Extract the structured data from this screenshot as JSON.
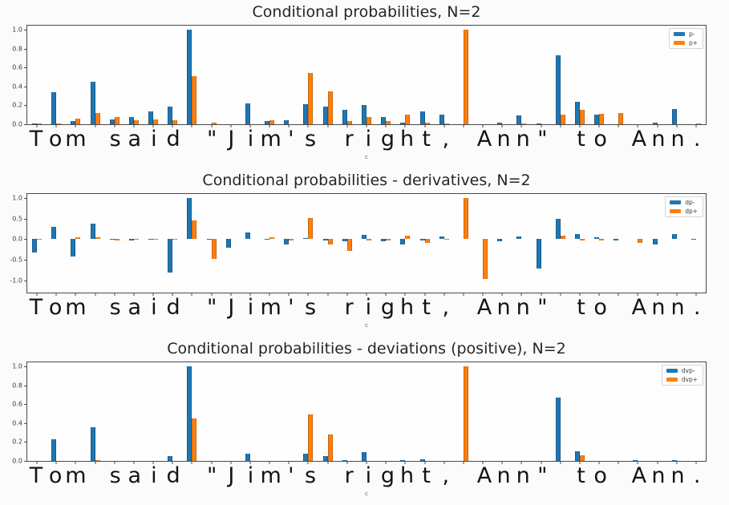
{
  "figure_title": "Conditional probabilities figure",
  "colors": {
    "series_blue": "#1f77b4",
    "series_blue_edge": "#1a5a8a",
    "series_orange": "#ff7f0e",
    "series_orange_edge": "#c9650b",
    "title_text": "#262626",
    "axis": "#4a4a4a"
  },
  "chart_data": [
    {
      "type": "bar",
      "title": "Conditional probabilities, N=2",
      "xlabel": "c",
      "legend_position": "upper right",
      "grid": false,
      "ylim": [
        0,
        1.045
      ],
      "yticks": [
        1.0,
        0.8,
        0.6,
        0.4,
        0.2,
        0.0
      ],
      "categories": [
        "T",
        "o",
        "m",
        " ",
        "s",
        "a",
        "i",
        "d",
        " ",
        "\"",
        "J",
        "i",
        "m",
        "'",
        "s",
        " ",
        "r",
        "i",
        "g",
        "h",
        "t",
        ",",
        " ",
        "A",
        "n",
        "n",
        "\"",
        " ",
        "t",
        "o",
        " ",
        "A",
        "n",
        "n",
        "."
      ],
      "series": [
        {
          "name": "p-",
          "color": "#1f77b4",
          "edge": "#1a5a8a",
          "values": [
            0.01,
            0.34,
            0.03,
            0.45,
            0.05,
            0.08,
            0.14,
            0.19,
            1.0,
            0.0,
            0.0,
            0.22,
            0.03,
            0.04,
            0.21,
            0.19,
            0.15,
            0.2,
            0.08,
            0.02,
            0.14,
            0.1,
            0.0,
            0.0,
            0.02,
            0.09,
            0.01,
            0.73,
            0.24,
            0.1,
            0.0,
            0.0,
            0.02,
            0.16,
            0.0
          ]
        },
        {
          "name": "p+",
          "color": "#ff7f0e",
          "edge": "#c9650b",
          "values": [
            0.01,
            0.01,
            0.06,
            0.12,
            0.08,
            0.04,
            0.05,
            0.04,
            0.51,
            0.02,
            0.0,
            0.0,
            0.04,
            0.0,
            0.54,
            0.35,
            0.03,
            0.08,
            0.03,
            0.1,
            0.02,
            0.01,
            1.0,
            0.0,
            0.0,
            0.01,
            0.0,
            0.1,
            0.15,
            0.11,
            0.12,
            0.0,
            0.0,
            0.0,
            0.01
          ]
        }
      ]
    },
    {
      "type": "bar",
      "title": "Conditional probabilities - derivatives, N=2",
      "xlabel": "c",
      "legend_position": "upper right",
      "grid": false,
      "ylim": [
        -1.3,
        1.1
      ],
      "yticks": [
        1.0,
        0.5,
        0.0,
        -0.5,
        -1.0
      ],
      "categories": [
        "T",
        "o",
        "m",
        " ",
        "s",
        "a",
        "i",
        "d",
        " ",
        "\"",
        "J",
        "i",
        "m",
        "'",
        "s",
        " ",
        "r",
        "i",
        "g",
        "h",
        "t",
        ",",
        " ",
        "A",
        "n",
        "n",
        "\"",
        " ",
        "t",
        "o",
        " ",
        "A",
        "n",
        "n",
        "."
      ],
      "series": [
        {
          "name": "dp-",
          "color": "#1f77b4",
          "edge": "#1a5a8a",
          "values": [
            -0.33,
            0.3,
            -0.42,
            0.38,
            -0.02,
            -0.03,
            -0.02,
            -0.81,
            1.0,
            -0.01,
            -0.21,
            0.17,
            0.01,
            -0.13,
            0.03,
            -0.04,
            -0.05,
            0.1,
            -0.06,
            -0.13,
            -0.04,
            0.07,
            0.0,
            0.0,
            -0.05,
            0.06,
            -0.72,
            0.5,
            0.12,
            0.04,
            -0.03,
            0.0,
            -0.12,
            0.12,
            -0.02
          ]
        },
        {
          "name": "dp+",
          "color": "#ff7f0e",
          "edge": "#c9650b",
          "values": [
            -0.01,
            0.0,
            0.04,
            0.04,
            -0.03,
            -0.02,
            0.01,
            -0.01,
            0.46,
            -0.48,
            0.0,
            0.0,
            0.04,
            -0.03,
            0.52,
            -0.12,
            -0.28,
            -0.03,
            -0.04,
            0.08,
            -0.1,
            0.01,
            1.0,
            -0.97,
            0.0,
            0.0,
            0.0,
            0.09,
            -0.03,
            -0.04,
            0.0,
            -0.1,
            0.0,
            0.0,
            0.0
          ]
        }
      ]
    },
    {
      "type": "bar",
      "title": "Conditional probabilities - deviations (positive), N=2",
      "xlabel": "c",
      "legend_position": "upper right",
      "grid": false,
      "ylim": [
        0,
        1.045
      ],
      "yticks": [
        1.0,
        0.8,
        0.6,
        0.4,
        0.2,
        0.0
      ],
      "categories": [
        "T",
        "o",
        "m",
        " ",
        "s",
        "a",
        "i",
        "d",
        " ",
        "\"",
        "J",
        "i",
        "m",
        "'",
        "s",
        " ",
        "r",
        "i",
        "g",
        "h",
        "t",
        ",",
        " ",
        "A",
        "n",
        "n",
        "\"",
        " ",
        "t",
        "o",
        " ",
        "A",
        "n",
        "n",
        "."
      ],
      "series": [
        {
          "name": "dvp-",
          "color": "#1f77b4",
          "edge": "#1a5a8a",
          "values": [
            0.0,
            0.23,
            0.0,
            0.36,
            0.0,
            0.0,
            0.0,
            0.05,
            1.0,
            0.0,
            0.0,
            0.08,
            0.0,
            0.0,
            0.08,
            0.05,
            0.01,
            0.09,
            0.0,
            0.01,
            0.02,
            0.0,
            0.0,
            0.0,
            0.0,
            0.0,
            0.0,
            0.67,
            0.1,
            0.0,
            0.0,
            0.01,
            0.0,
            0.01,
            0.0
          ]
        },
        {
          "name": "dvp+",
          "color": "#ff7f0e",
          "edge": "#c9650b",
          "values": [
            0.0,
            0.0,
            0.0,
            0.01,
            0.0,
            0.0,
            0.0,
            0.0,
            0.45,
            0.0,
            0.0,
            0.0,
            0.0,
            0.0,
            0.49,
            0.28,
            0.0,
            0.0,
            0.0,
            0.0,
            0.0,
            0.0,
            1.0,
            0.0,
            0.0,
            0.0,
            0.0,
            0.0,
            0.06,
            0.0,
            0.0,
            0.0,
            0.0,
            0.0,
            0.0
          ]
        }
      ]
    }
  ]
}
